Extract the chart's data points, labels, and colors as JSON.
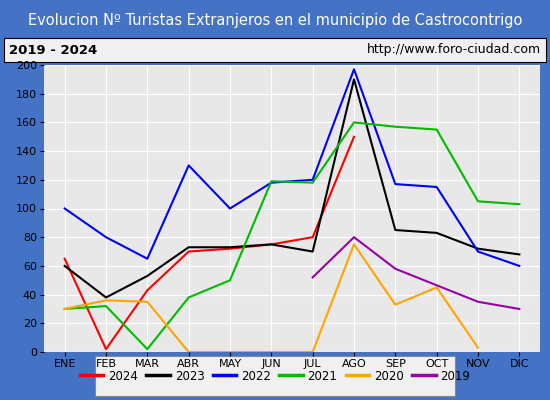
{
  "title": "Evolucion Nº Turistas Extranjeros en el municipio de Castrocontrigo",
  "subtitle_left": "2019 - 2024",
  "subtitle_right": "http://www.foro-ciudad.com",
  "months": [
    "ENE",
    "FEB",
    "MAR",
    "ABR",
    "MAY",
    "JUN",
    "JUL",
    "AGO",
    "SEP",
    "OCT",
    "NOV",
    "DIC"
  ],
  "series": {
    "2024": [
      65,
      2,
      43,
      70,
      72,
      75,
      80,
      150,
      null,
      null,
      null,
      null
    ],
    "2023": [
      60,
      38,
      53,
      73,
      73,
      75,
      70,
      190,
      85,
      83,
      72,
      68
    ],
    "2022": [
      100,
      80,
      65,
      130,
      100,
      118,
      120,
      197,
      117,
      115,
      70,
      60
    ],
    "2021": [
      30,
      32,
      2,
      38,
      50,
      119,
      118,
      160,
      157,
      155,
      105,
      103
    ],
    "2020": [
      30,
      36,
      35,
      0,
      0,
      0,
      0,
      75,
      33,
      45,
      3,
      null
    ],
    "2019": [
      null,
      null,
      null,
      null,
      null,
      null,
      52,
      80,
      58,
      null,
      35,
      30
    ]
  },
  "colors": {
    "2024": "#ff0000",
    "2023": "#000000",
    "2022": "#0000ff",
    "2021": "#00bb00",
    "2020": "#ffa500",
    "2019": "#9900aa"
  },
  "ylim": [
    0,
    200
  ],
  "yticks": [
    0,
    20,
    40,
    60,
    80,
    100,
    120,
    140,
    160,
    180,
    200
  ],
  "title_bg_color": "#4472c4",
  "title_text_color": "#ffffff",
  "subtitle_bg_color": "#f0f0f0",
  "subtitle_border_color": "#000000",
  "plot_bg_color": "#e8e8e8",
  "grid_color": "#ffffff",
  "outer_bg_color": "#4472c4",
  "legend_bg_color": "#f0f0f0",
  "legend_border_color": "#888888",
  "legend_years": [
    "2024",
    "2023",
    "2022",
    "2021",
    "2020",
    "2019"
  ],
  "title_fontsize": 10.5,
  "subtitle_fontsize": 9.5,
  "tick_fontsize": 8,
  "legend_fontsize": 8.5
}
